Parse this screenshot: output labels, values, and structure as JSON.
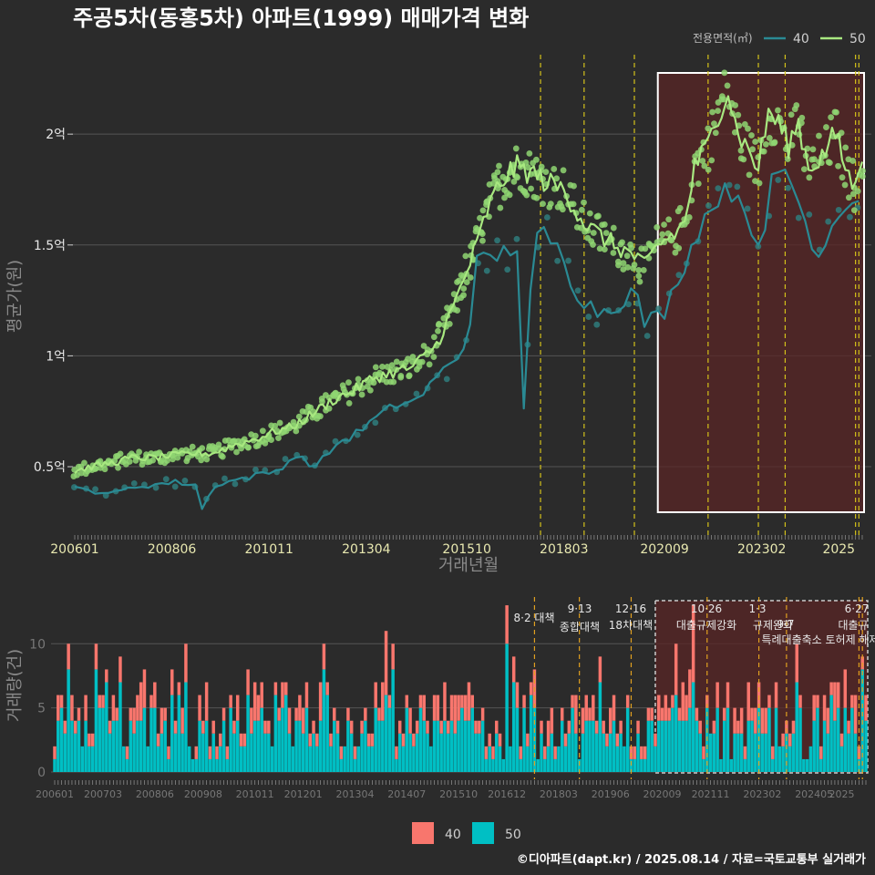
{
  "title": "주공5차(동홍5차) 아파트(1999) 매매가격 변화",
  "footer": "©디아파트(dapt.kr) / 2025.08.14 / 자료=국토교통부 실거래가",
  "colors": {
    "bg": "#2b2b2b",
    "series40_line": "#2a8a94",
    "series40_point": "#2f7d7d",
    "series50_line": "#a8e880",
    "series50_point": "#8fd672",
    "bar40": "#f8766d",
    "bar50": "#00bfc4",
    "policy_line": "#d4c21a",
    "policy_line_bottom": "#e0a020",
    "highlight_fill": "#5a2626",
    "grid": "#555555"
  },
  "chart_data": [
    {
      "type": "line",
      "title": "주공5차(동홍5차) 아파트(1999) 매매가격 변화",
      "xlabel": "거래년월",
      "ylabel": "평균가(원)",
      "x_ticks": [
        "200601",
        "200806",
        "201011",
        "201304",
        "201510",
        "201803",
        "202009",
        "202302",
        "2025"
      ],
      "y_ticks": [
        "0.5억",
        "1억",
        "1.5억",
        "2억"
      ],
      "y_tick_values": [
        0.5,
        1.0,
        1.5,
        2.0
      ],
      "ylim": [
        0.2,
        2.42
      ],
      "xlim": [
        "2006-01",
        "2025-08"
      ],
      "legend": {
        "title": "전용면적(㎡)",
        "position": "top-right",
        "entries": [
          "40",
          "50"
        ]
      },
      "policy_dates": [
        "2017-08",
        "2018-09",
        "2019-12",
        "2021-10",
        "2023-01",
        "2023-09",
        "2025-06",
        "2025-07"
      ],
      "highlight_range": [
        "2020-07",
        "2025-08"
      ],
      "series": [
        {
          "name": "40",
          "points": [
            [
              "2006-01",
              0.4
            ],
            [
              "2006-07",
              0.39
            ],
            [
              "2007-01",
              0.38
            ],
            [
              "2007-07",
              0.41
            ],
            [
              "2008-01",
              0.42
            ],
            [
              "2008-07",
              0.43
            ],
            [
              "2009-01",
              0.42
            ],
            [
              "2009-03",
              0.31
            ],
            [
              "2009-07",
              0.42
            ],
            [
              "2010-01",
              0.44
            ],
            [
              "2010-07",
              0.46
            ],
            [
              "2011-01",
              0.48
            ],
            [
              "2011-07",
              0.55
            ],
            [
              "2012-01",
              0.5
            ],
            [
              "2012-07",
              0.6
            ],
            [
              "2013-01",
              0.65
            ],
            [
              "2013-07",
              0.72
            ],
            [
              "2014-01",
              0.78
            ],
            [
              "2014-07",
              0.8
            ],
            [
              "2015-01",
              0.9
            ],
            [
              "2015-04",
              0.95
            ],
            [
              "2015-10",
              1.05
            ],
            [
              "2016-01",
              1.42
            ],
            [
              "2016-07",
              1.45
            ],
            [
              "2017-01",
              1.5
            ],
            [
              "2017-03",
              0.76
            ],
            [
              "2017-06",
              1.52
            ],
            [
              "2017-09",
              1.55
            ],
            [
              "2018-03",
              1.45
            ],
            [
              "2018-06",
              1.3
            ],
            [
              "2018-09",
              1.25
            ],
            [
              "2019-01",
              1.2
            ],
            [
              "2019-06",
              1.22
            ],
            [
              "2019-12",
              1.3
            ],
            [
              "2020-03",
              1.15
            ],
            [
              "2020-09",
              1.2
            ],
            [
              "2021-01",
              1.35
            ],
            [
              "2021-04",
              1.45
            ],
            [
              "2021-08",
              1.6
            ],
            [
              "2022-01",
              1.72
            ],
            [
              "2022-06",
              1.75
            ],
            [
              "2022-10",
              1.65
            ],
            [
              "2023-02",
              1.4
            ],
            [
              "2023-05",
              1.8
            ],
            [
              "2023-09",
              1.85
            ],
            [
              "2024-01",
              1.7
            ],
            [
              "2024-04",
              1.55
            ],
            [
              "2024-08",
              1.45
            ],
            [
              "2024-12",
              1.65
            ],
            [
              "2025-04",
              1.7
            ],
            [
              "2025-07",
              1.7
            ]
          ]
        },
        {
          "name": "50",
          "points": [
            [
              "2006-01",
              0.48
            ],
            [
              "2006-06",
              0.5
            ],
            [
              "2007-01",
              0.52
            ],
            [
              "2007-06",
              0.54
            ],
            [
              "2008-01",
              0.54
            ],
            [
              "2008-06",
              0.55
            ],
            [
              "2009-01",
              0.56
            ],
            [
              "2009-06",
              0.56
            ],
            [
              "2010-01",
              0.6
            ],
            [
              "2010-06",
              0.62
            ],
            [
              "2011-01",
              0.66
            ],
            [
              "2011-06",
              0.68
            ],
            [
              "2012-01",
              0.75
            ],
            [
              "2012-06",
              0.8
            ],
            [
              "2013-01",
              0.85
            ],
            [
              "2013-06",
              0.9
            ],
            [
              "2014-01",
              0.93
            ],
            [
              "2014-06",
              0.95
            ],
            [
              "2015-01",
              1.05
            ],
            [
              "2015-06",
              1.22
            ],
            [
              "2015-10",
              1.38
            ],
            [
              "2016-01",
              1.5
            ],
            [
              "2016-04",
              1.65
            ],
            [
              "2016-07",
              1.75
            ],
            [
              "2016-10",
              1.82
            ],
            [
              "2017-01",
              1.85
            ],
            [
              "2017-06",
              1.82
            ],
            [
              "2017-10",
              1.78
            ],
            [
              "2018-03",
              1.75
            ],
            [
              "2018-09",
              1.6
            ],
            [
              "2019-01",
              1.55
            ],
            [
              "2019-06",
              1.5
            ],
            [
              "2019-12",
              1.45
            ],
            [
              "2020-03",
              1.4
            ],
            [
              "2020-07",
              1.5
            ],
            [
              "2020-12",
              1.55
            ],
            [
              "2021-03",
              1.6
            ],
            [
              "2021-06",
              1.85
            ],
            [
              "2021-10",
              1.95
            ],
            [
              "2022-01",
              2.1
            ],
            [
              "2022-04",
              2.2
            ],
            [
              "2022-06",
              2.05
            ],
            [
              "2022-09",
              1.95
            ],
            [
              "2023-01",
              1.85
            ],
            [
              "2023-04",
              2.1
            ],
            [
              "2023-07",
              2.05
            ],
            [
              "2023-10",
              1.95
            ],
            [
              "2024-01",
              2.05
            ],
            [
              "2024-04",
              1.85
            ],
            [
              "2024-08",
              1.9
            ],
            [
              "2024-12",
              2.0
            ],
            [
              "2025-03",
              1.85
            ],
            [
              "2025-06",
              1.75
            ],
            [
              "2025-08",
              1.92
            ]
          ]
        }
      ]
    },
    {
      "type": "bar",
      "stacked": true,
      "ylabel": "거래량(건)",
      "x_ticks": [
        "200601",
        "200703",
        "200806",
        "200908",
        "201011",
        "201201",
        "201304",
        "201407",
        "201510",
        "201612",
        "201803",
        "201906",
        "202009",
        "202111",
        "202302",
        "202405",
        "2025"
      ],
      "y_ticks": [
        "0",
        "5",
        "10"
      ],
      "ylim": [
        0,
        14
      ],
      "legend": {
        "position": "bottom",
        "entries": [
          "40",
          "50"
        ]
      },
      "annotations": [
        {
          "date": "2017-08",
          "label": "8·2 대책"
        },
        {
          "date": "2018-09",
          "label": "9·13 종합대책"
        },
        {
          "date": "2019-12",
          "label": "12·16 18차대책"
        },
        {
          "date": "2021-10",
          "label": "10·26 대출규제강화"
        },
        {
          "date": "2023-01",
          "label": "1·3 규제완화"
        },
        {
          "date": "2023-09",
          "label": "9·7 특례대출축소 토허제 해제"
        },
        {
          "date": "2025-06",
          "label": "6·27 대출규"
        }
      ],
      "annotation_texts": [
        "8·2 대책",
        "9·13",
        "종합대책",
        "12·16",
        "18차대책",
        "10·26",
        "대출규제강화",
        "1·3",
        "규제완화",
        "9·7",
        "특례대출축소 토허제 해제",
        "6·27",
        "대출규"
      ],
      "highlight_range": [
        "2020-07",
        "2025-08"
      ],
      "monthly_totals_pattern": "approx. 1-9 per month; spikes near 2016-12 (13), 2021-06 (13), 2021-01 (10)"
    }
  ]
}
